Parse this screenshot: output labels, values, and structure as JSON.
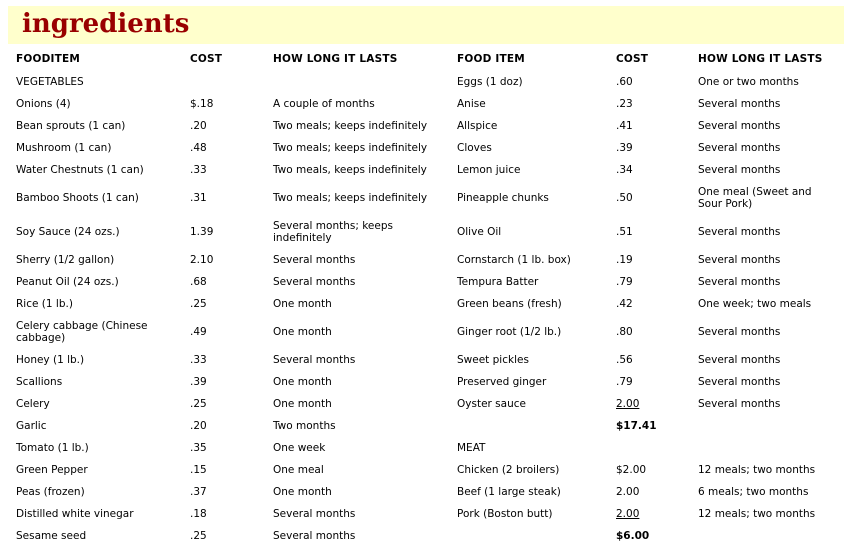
{
  "page": {
    "title": "ingredients"
  },
  "colors": {
    "title_band_bg": "#FFFFCC",
    "title_text": "#990000",
    "body_text": "#000000",
    "page_bg": "#FFFFFF"
  },
  "table": {
    "headers": [
      "FOODITEM",
      "COST",
      "HOW LONG IT LASTS",
      "FOOD ITEM",
      "COST",
      "HOW LONG IT LASTS"
    ],
    "rows": [
      [
        {
          "text": "VEGETABLES",
          "section": true
        },
        {
          "text": ""
        },
        {
          "text": ""
        },
        {
          "text": "Eggs (1 doz)"
        },
        {
          "text": ".60"
        },
        {
          "text": "One or two months"
        }
      ],
      [
        {
          "text": "Onions (4)"
        },
        {
          "text": "$.18"
        },
        {
          "text": "A couple of months"
        },
        {
          "text": "Anise"
        },
        {
          "text": ".23"
        },
        {
          "text": "Several months"
        }
      ],
      [
        {
          "text": "Bean sprouts (1 can)"
        },
        {
          "text": ".20"
        },
        {
          "text": "Two meals; keeps indefinitely"
        },
        {
          "text": "Allspice"
        },
        {
          "text": ".41"
        },
        {
          "text": "Several months"
        }
      ],
      [
        {
          "text": "Mushroom (1 can)"
        },
        {
          "text": ".48"
        },
        {
          "text": "Two meals; keeps indefinitely"
        },
        {
          "text": "Cloves"
        },
        {
          "text": ".39"
        },
        {
          "text": "Several months"
        }
      ],
      [
        {
          "text": "Water Chestnuts (1 can)"
        },
        {
          "text": ".33"
        },
        {
          "text": "Two meals, keeps indefinitely"
        },
        {
          "text": "Lemon juice"
        },
        {
          "text": ".34"
        },
        {
          "text": "Several months"
        }
      ],
      [
        {
          "text": "Bamboo Shoots (1 can)"
        },
        {
          "text": ".31"
        },
        {
          "text": "Two meals; keeps indefinitely"
        },
        {
          "text": "Pineapple chunks"
        },
        {
          "text": ".50"
        },
        {
          "text": "One meal (Sweet and Sour Pork)"
        }
      ],
      [
        {
          "text": "Soy Sauce (24 ozs.)"
        },
        {
          "text": "1.39"
        },
        {
          "text": "Several months; keeps indefinitely"
        },
        {
          "text": "Olive Oil"
        },
        {
          "text": ".51"
        },
        {
          "text": "Several months"
        }
      ],
      [
        {
          "text": "Sherry (1/2 gallon)"
        },
        {
          "text": "2.10"
        },
        {
          "text": "Several months"
        },
        {
          "text": "Cornstarch (1 lb. box)"
        },
        {
          "text": ".19"
        },
        {
          "text": "Several months"
        }
      ],
      [
        {
          "text": "Peanut Oil (24 ozs.)"
        },
        {
          "text": ".68"
        },
        {
          "text": "Several months"
        },
        {
          "text": "Tempura Batter"
        },
        {
          "text": ".79"
        },
        {
          "text": "Several months"
        }
      ],
      [
        {
          "text": "Rice (1 lb.)"
        },
        {
          "text": ".25"
        },
        {
          "text": "One month"
        },
        {
          "text": "Green beans (fresh)"
        },
        {
          "text": ".42"
        },
        {
          "text": "One week; two meals"
        }
      ],
      [
        {
          "text": "Celery cabbage (Chinese cabbage)"
        },
        {
          "text": ".49"
        },
        {
          "text": "One month"
        },
        {
          "text": "Ginger root (1/2 lb.)"
        },
        {
          "text": ".80"
        },
        {
          "text": "Several months"
        }
      ],
      [
        {
          "text": "Honey (1 lb.)"
        },
        {
          "text": ".33"
        },
        {
          "text": "Several months"
        },
        {
          "text": "Sweet pickles"
        },
        {
          "text": ".56"
        },
        {
          "text": "Several months"
        }
      ],
      [
        {
          "text": "Scallions"
        },
        {
          "text": ".39"
        },
        {
          "text": "One month"
        },
        {
          "text": "Preserved ginger"
        },
        {
          "text": ".79"
        },
        {
          "text": "Several months"
        }
      ],
      [
        {
          "text": "Celery"
        },
        {
          "text": ".25"
        },
        {
          "text": "One month"
        },
        {
          "text": "Oyster sauce"
        },
        {
          "text": "2.00",
          "underline": true
        },
        {
          "text": "Several months"
        }
      ],
      [
        {
          "text": "Garlic"
        },
        {
          "text": ".20"
        },
        {
          "text": "Two months"
        },
        {
          "text": ""
        },
        {
          "text": "$17.41",
          "bold": true
        },
        {
          "text": ""
        }
      ],
      [
        {
          "text": "Tomato (1 lb.)"
        },
        {
          "text": ".35"
        },
        {
          "text": "One week"
        },
        {
          "text": "MEAT",
          "section": true
        },
        {
          "text": ""
        },
        {
          "text": ""
        }
      ],
      [
        {
          "text": "Green Pepper"
        },
        {
          "text": ".15"
        },
        {
          "text": "One meal"
        },
        {
          "text": "Chicken (2 broilers)"
        },
        {
          "text": "$2.00"
        },
        {
          "text": "12 meals; two months"
        }
      ],
      [
        {
          "text": "Peas (frozen)"
        },
        {
          "text": ".37"
        },
        {
          "text": "One month"
        },
        {
          "text": "Beef (1 large steak)"
        },
        {
          "text": "2.00"
        },
        {
          "text": "6 meals; two months"
        }
      ],
      [
        {
          "text": "Distilled white vinegar"
        },
        {
          "text": ".18"
        },
        {
          "text": "Several months"
        },
        {
          "text": "Pork (Boston butt)"
        },
        {
          "text": "2.00",
          "underline": true
        },
        {
          "text": "12 meals; two months"
        }
      ],
      [
        {
          "text": "Sesame seed"
        },
        {
          "text": ".25"
        },
        {
          "text": "Several months"
        },
        {
          "text": ""
        },
        {
          "text": "$6.00",
          "bold": true
        },
        {
          "text": ""
        }
      ]
    ]
  }
}
